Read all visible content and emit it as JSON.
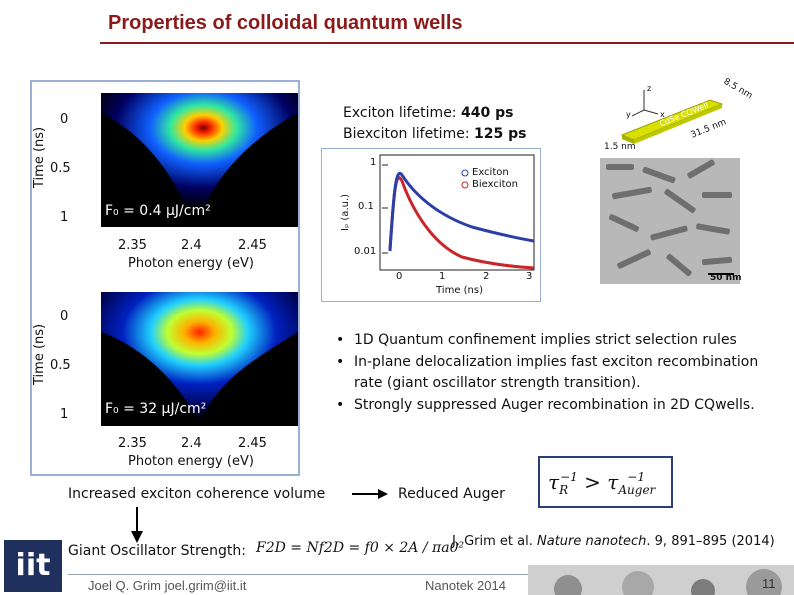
{
  "slide": {
    "title": "Properties of colloidal quantum wells",
    "author": "Joel Q. Grim   joel.grim@iit.it",
    "conference": "Nanotek 2014",
    "page_number": "11",
    "logo_text": "iit"
  },
  "heatmaps": [
    {
      "ylabel": "Time (ns)",
      "xlabel": "Photon energy (eV)",
      "yticks": [
        "0",
        "0.5",
        "1"
      ],
      "xticks": [
        "2.35",
        "2.4",
        "2.45"
      ],
      "fluence_label": "F₀ = 0.4 μJ/cm²"
    },
    {
      "ylabel": "Time (ns)",
      "xlabel": "Photon energy (eV)",
      "yticks": [
        "0",
        "0.5",
        "1"
      ],
      "xticks": [
        "2.35",
        "2.4",
        "2.45"
      ],
      "fluence_label": "F₀ = 32 μJ/cm²"
    }
  ],
  "lifetimes": {
    "exciton_prefix": "Exciton lifetime: ",
    "exciton_value": "440 ps",
    "biexciton_prefix": "Biexciton lifetime: ",
    "biexciton_value": "125 ps"
  },
  "decay_plot": {
    "ylabel": "Iₚ (a.u.)",
    "xlabel": "Time (ns)",
    "xticks": [
      "0",
      "1",
      "2",
      "3"
    ],
    "yticks": [
      "1",
      "0.1",
      "0.01"
    ],
    "legend": [
      "Exciton",
      "Biexciton"
    ],
    "colors": {
      "exciton": "#2b3fa8",
      "biexciton": "#c8262a"
    }
  },
  "nanoplatelet": {
    "dim_top": "8.5 nm",
    "dim_side": "31.5 nm",
    "dim_thick": "1.5 nm",
    "label": "CdSe CQWell",
    "axis_labels": [
      "z",
      "y",
      "x"
    ],
    "scale_bar": "50 nm"
  },
  "bullets": [
    "1D Quantum confinement implies strict selection rules",
    "In-plane delocalization implies fast exciton recombination rate (giant oscillator strength transition).",
    "Strongly suppressed Auger recombination in 2D CQwells."
  ],
  "flow": {
    "coherence": "Increased exciton coherence volume",
    "reduced": "Reduced Auger",
    "oscillator": "Giant Oscillator Strength:"
  },
  "formulas": {
    "tau": "τR⁻¹ > τAuger⁻¹",
    "oscillator": "F2D = Nf2D = f0 × 2A / πa0²"
  },
  "reference": {
    "authors": "J. Grim et al. ",
    "journal": "Nature nanotech",
    "rest": ". 9, 891–895 (2014)"
  }
}
